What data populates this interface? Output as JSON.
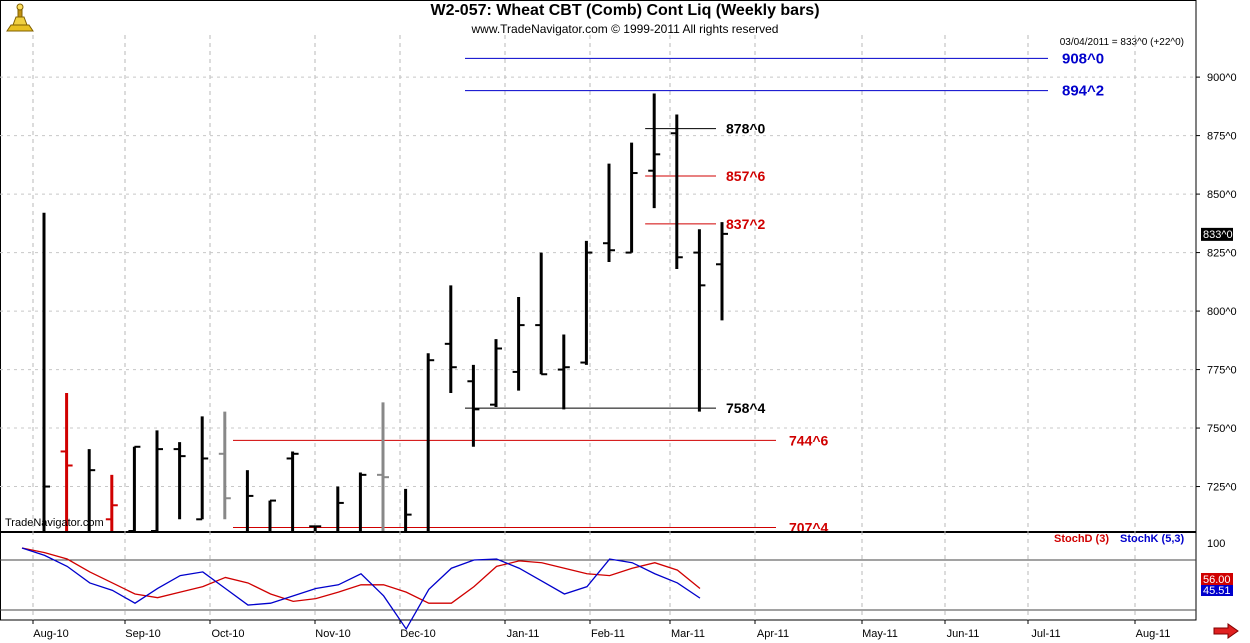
{
  "chart_data": [
    {
      "type": "ohlc",
      "title": "W2-057:  Wheat CBT (Comb) Cont Liq  (Weekly bars)",
      "subtitle": "www.TradeNavigator.com © 1999-2011 All rights reserved",
      "readout": "03/04/2011 = 833^0 (+22^0)",
      "last_price_label": "833^0",
      "ylim": [
        706,
        918
      ],
      "y_ticks": [
        725,
        750,
        775,
        800,
        825,
        850,
        875,
        900
      ],
      "y_tick_labels": [
        "725^0",
        "750^0",
        "775^0",
        "800^0",
        "825^0",
        "850^0",
        "875^0",
        "900^0"
      ],
      "x_tick_labels": [
        "Aug-10",
        "Sep-10",
        "Oct-10",
        "Nov-10",
        "Dec-10",
        "Jan-11",
        "Feb-11",
        "Mar-11",
        "Apr-11",
        "May-11",
        "Jun-11",
        "Jul-11",
        "Aug-11"
      ],
      "grid": true,
      "bars": [
        {
          "high": 842,
          "low": 705,
          "open": 705,
          "close": 725,
          "color": "#000000"
        },
        {
          "high": 765,
          "low": 705,
          "open": 740,
          "close": 734,
          "color": "#d00000"
        },
        {
          "high": 741,
          "low": 705,
          "open": 705,
          "close": 732,
          "color": "#000000"
        },
        {
          "high": 730,
          "low": 705,
          "open": 711,
          "close": 717,
          "color": "#d00000"
        },
        {
          "high": 742,
          "low": 706,
          "open": 706,
          "close": 742,
          "color": "#000000"
        },
        {
          "high": 749,
          "low": 706,
          "open": 706,
          "close": 741,
          "color": "#000000"
        },
        {
          "high": 744,
          "low": 711,
          "open": 741,
          "close": 738,
          "color": "#000000"
        },
        {
          "high": 755,
          "low": 711,
          "open": 711,
          "close": 737,
          "color": "#000000"
        },
        {
          "high": 757,
          "low": 711,
          "open": 739,
          "close": 720,
          "color": "#888888"
        },
        {
          "high": 732,
          "low": 705,
          "open": 705,
          "close": 721,
          "color": "#000000"
        },
        {
          "high": 719,
          "low": 705,
          "open": 705,
          "close": 719,
          "color": "#000000"
        },
        {
          "high": 740,
          "low": 705,
          "open": 737,
          "close": 739,
          "color": "#000000"
        },
        {
          "high": 708,
          "low": 705,
          "open": 708,
          "close": 708,
          "color": "#000000"
        },
        {
          "high": 725,
          "low": 705,
          "open": 705,
          "close": 718,
          "color": "#000000"
        },
        {
          "high": 731,
          "low": 705,
          "open": 705,
          "close": 730,
          "color": "#000000"
        },
        {
          "high": 761,
          "low": 705,
          "open": 730,
          "close": 729,
          "color": "#888888"
        },
        {
          "high": 724,
          "low": 705,
          "open": 705,
          "close": 713,
          "color": "#000000"
        },
        {
          "high": 782,
          "low": 705,
          "open": 705,
          "close": 779,
          "color": "#000000"
        },
        {
          "high": 811,
          "low": 765,
          "open": 786,
          "close": 776,
          "color": "#000000"
        },
        {
          "high": 777,
          "low": 742,
          "open": 770,
          "close": 758,
          "color": "#000000"
        },
        {
          "high": 788,
          "low": 759,
          "open": 760,
          "close": 784,
          "color": "#000000"
        },
        {
          "high": 806,
          "low": 766,
          "open": 774,
          "close": 794,
          "color": "#000000"
        },
        {
          "high": 825,
          "low": 773,
          "open": 794,
          "close": 773,
          "color": "#000000"
        },
        {
          "high": 790,
          "low": 758,
          "open": 775,
          "close": 776,
          "color": "#000000"
        },
        {
          "high": 830,
          "low": 777,
          "open": 778,
          "close": 825,
          "color": "#000000"
        },
        {
          "high": 863,
          "low": 821,
          "open": 829,
          "close": 826,
          "color": "#000000"
        },
        {
          "high": 872,
          "low": 825,
          "open": 825,
          "close": 859,
          "color": "#000000"
        },
        {
          "high": 893,
          "low": 844,
          "open": 860,
          "close": 867,
          "color": "#000000"
        },
        {
          "high": 884,
          "low": 818,
          "open": 876,
          "close": 823,
          "color": "#000000"
        },
        {
          "high": 835,
          "low": 757,
          "open": 825,
          "close": 811,
          "color": "#000000"
        },
        {
          "high": 838,
          "low": 796,
          "open": 820,
          "close": 833,
          "color": "#000000"
        }
      ],
      "levels": [
        {
          "label": "908^0",
          "value": 908,
          "color": "#0000cc",
          "start_bar": 19
        },
        {
          "label": "894^2",
          "value": 894.25,
          "color": "#0000cc",
          "start_bar": 19
        },
        {
          "label": "878^0",
          "value": 878,
          "color": "#000000",
          "start_bar": 27
        },
        {
          "label": "857^6",
          "value": 857.75,
          "color": "#d00000",
          "start_bar": 27
        },
        {
          "label": "837^2",
          "value": 837.25,
          "color": "#d00000",
          "start_bar": 27
        },
        {
          "label": "758^4",
          "value": 758.5,
          "color": "#000000",
          "start_bar": 19
        },
        {
          "label": "744^6",
          "value": 744.75,
          "color": "#d00000",
          "start_bar": 9
        },
        {
          "label": "707^4",
          "value": 707.5,
          "color": "#d00000",
          "start_bar": 9
        }
      ]
    },
    {
      "type": "line",
      "legend": [
        "StochD (3)",
        "StochK (5,3)"
      ],
      "y_tick_label": "100",
      "last_values": {
        "d": "56.00",
        "k": "45.51"
      },
      "series": [
        {
          "name": "StochD (3)",
          "color": "#d00000",
          "values": [
            100,
            95,
            88,
            74,
            62,
            50,
            46,
            52,
            58,
            68,
            62,
            50,
            42,
            45,
            52,
            60,
            60,
            52,
            40,
            40,
            58,
            80,
            86,
            84,
            78,
            72,
            70,
            78,
            84,
            76,
            56
          ]
        },
        {
          "name": "StochK (5,3)",
          "color": "#0000cc",
          "values": [
            100,
            92,
            80,
            62,
            54,
            40,
            56,
            70,
            74,
            56,
            38,
            40,
            48,
            56,
            60,
            72,
            48,
            12,
            55,
            78,
            87,
            88,
            78,
            64,
            50,
            58,
            88,
            84,
            72,
            62,
            45.51
          ]
        }
      ]
    }
  ],
  "watermark": "TradeNavigator.com",
  "icons": {
    "logo": "trade-navigator-logo-icon",
    "scroll": "scroll-right-arrow-icon"
  }
}
